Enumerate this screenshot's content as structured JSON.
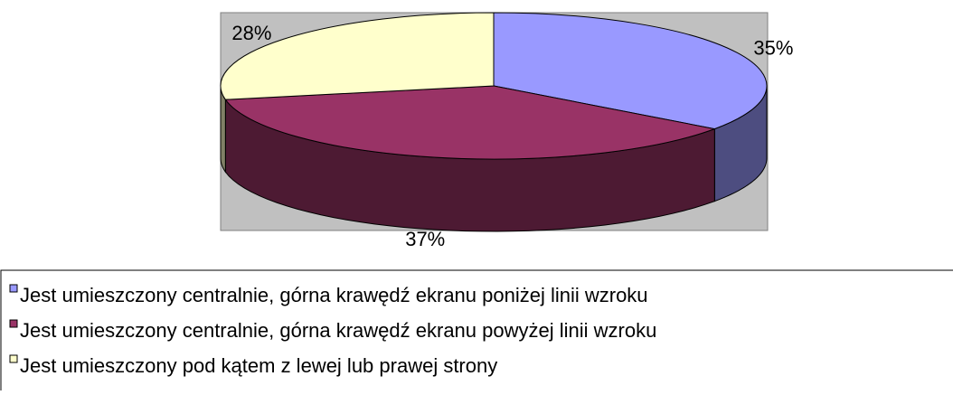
{
  "chart_data": {
    "type": "pie3d",
    "categories": [
      "Jest umieszczony centralnie, górna krawędź ekranu poniżej linii wzroku",
      "Jest umieszczony centralnie, górna krawędź ekranu powyżej linii wzroku",
      "Jest umieszczony pod kątem z lewej lub prawej strony"
    ],
    "values": [
      35,
      37,
      28
    ],
    "value_labels": [
      "35%",
      "37%",
      "28%"
    ],
    "colors": [
      "#9999ff",
      "#993366",
      "#ffffcc"
    ]
  }
}
